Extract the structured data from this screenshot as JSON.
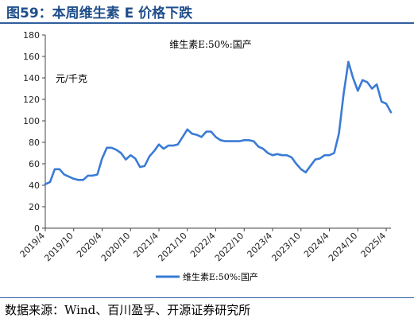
{
  "figure": {
    "title": "图59：本周维生素 E 价格下跌",
    "source": "数据来源：Wind、百川盈孚、开源证券研究所"
  },
  "chart_data": {
    "type": "line",
    "title": "维生素E:50%:国产",
    "unit_label": "元/千克",
    "ylim": [
      0,
      180
    ],
    "y_ticks": [
      0,
      20,
      40,
      60,
      80,
      100,
      120,
      140,
      160,
      180
    ],
    "x_ticks": [
      "2019/4",
      "2019/10",
      "2020/4",
      "2020/10",
      "2021/4",
      "2021/10",
      "2022/4",
      "2022/10",
      "2023/4",
      "2023/10",
      "2024/4",
      "2024/10",
      "2025/4"
    ],
    "xlim": [
      "2019-04",
      "2025-05"
    ],
    "legend_position": "bottom-center",
    "grid": false,
    "series": [
      {
        "name": "维生素E:50%:国产",
        "color": "#3a7bd5",
        "points": [
          [
            "2019-04",
            41
          ],
          [
            "2019-05",
            43
          ],
          [
            "2019-06",
            55
          ],
          [
            "2019-07",
            55
          ],
          [
            "2019-08",
            50
          ],
          [
            "2019-09",
            48
          ],
          [
            "2019-10",
            46
          ],
          [
            "2019-11",
            45
          ],
          [
            "2019-12",
            45
          ],
          [
            "2020-01",
            49
          ],
          [
            "2020-02",
            49
          ],
          [
            "2020-03",
            50
          ],
          [
            "2020-04",
            65
          ],
          [
            "2020-05",
            75
          ],
          [
            "2020-06",
            75
          ],
          [
            "2020-07",
            73
          ],
          [
            "2020-08",
            70
          ],
          [
            "2020-09",
            64
          ],
          [
            "2020-10",
            68
          ],
          [
            "2020-11",
            65
          ],
          [
            "2020-12",
            57
          ],
          [
            "2021-01",
            58
          ],
          [
            "2021-02",
            67
          ],
          [
            "2021-03",
            72
          ],
          [
            "2021-04",
            78
          ],
          [
            "2021-05",
            74
          ],
          [
            "2021-06",
            77
          ],
          [
            "2021-07",
            77
          ],
          [
            "2021-08",
            78
          ],
          [
            "2021-09",
            85
          ],
          [
            "2021-10",
            92
          ],
          [
            "2021-11",
            88
          ],
          [
            "2021-12",
            87
          ],
          [
            "2022-01",
            85
          ],
          [
            "2022-02",
            90
          ],
          [
            "2022-03",
            90
          ],
          [
            "2022-04",
            85
          ],
          [
            "2022-05",
            82
          ],
          [
            "2022-06",
            81
          ],
          [
            "2022-07",
            81
          ],
          [
            "2022-08",
            81
          ],
          [
            "2022-09",
            81
          ],
          [
            "2022-10",
            82
          ],
          [
            "2022-11",
            82
          ],
          [
            "2022-12",
            81
          ],
          [
            "2023-01",
            76
          ],
          [
            "2023-02",
            74
          ],
          [
            "2023-03",
            70
          ],
          [
            "2023-04",
            68
          ],
          [
            "2023-05",
            69
          ],
          [
            "2023-06",
            68
          ],
          [
            "2023-07",
            68
          ],
          [
            "2023-08",
            66
          ],
          [
            "2023-09",
            60
          ],
          [
            "2023-10",
            55
          ],
          [
            "2023-11",
            52
          ],
          [
            "2023-12",
            58
          ],
          [
            "2024-01",
            64
          ],
          [
            "2024-02",
            65
          ],
          [
            "2024-03",
            68
          ],
          [
            "2024-04",
            68
          ],
          [
            "2024-05",
            70
          ],
          [
            "2024-06",
            88
          ],
          [
            "2024-07",
            125
          ],
          [
            "2024-08",
            155
          ],
          [
            "2024-09",
            140
          ],
          [
            "2024-10",
            128
          ],
          [
            "2024-11",
            138
          ],
          [
            "2024-12",
            136
          ],
          [
            "2025-01",
            130
          ],
          [
            "2025-02",
            134
          ],
          [
            "2025-03",
            118
          ],
          [
            "2025-04",
            116
          ],
          [
            "2025-05",
            108
          ]
        ]
      }
    ]
  }
}
